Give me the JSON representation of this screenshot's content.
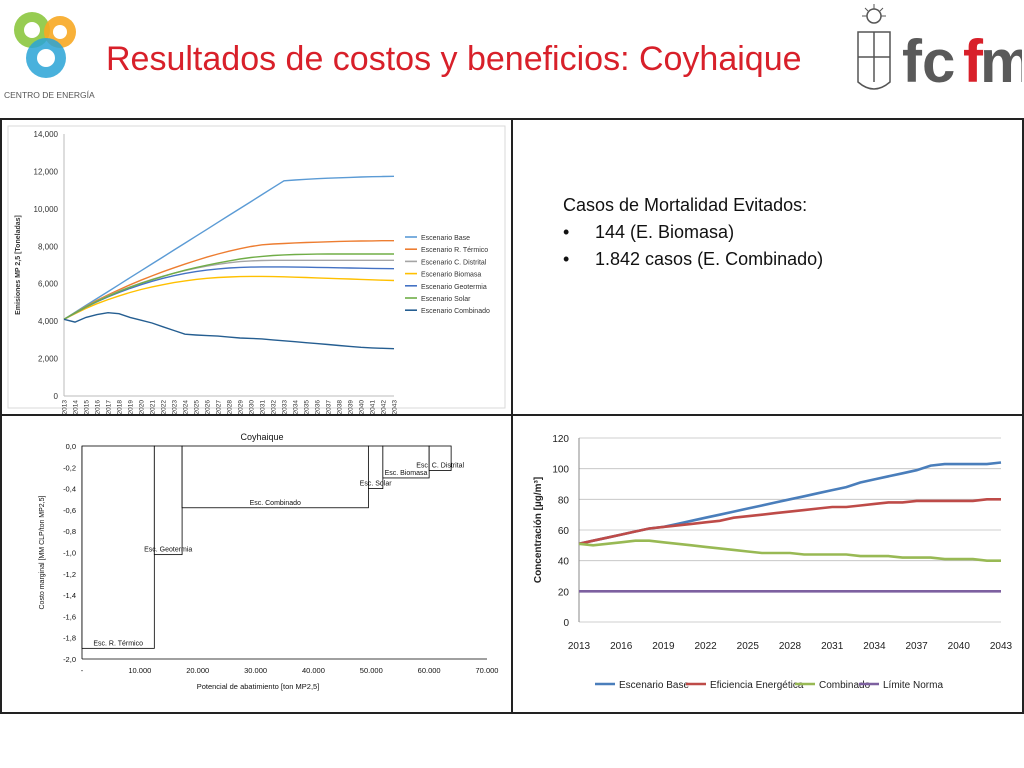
{
  "header": {
    "title": "Resultados de costos y beneficios: Coyhaique",
    "left_logo_text": "CENTRO DE ENERGÍA",
    "right_logo_text": "fcfm"
  },
  "mortality": {
    "heading": "Casos de Mortalidad Evitados:",
    "items": [
      "144 (E. Biomasa)",
      "1.842 casos (E. Combinado)"
    ]
  },
  "chart_data": [
    {
      "type": "line",
      "title": "",
      "xlabel": "",
      "ylabel": "Emisiones MP 2,5 [Toneladas]",
      "ylim": [
        0,
        14000
      ],
      "yticks": [
        "0",
        "2,000",
        "4,000",
        "6,000",
        "8,000",
        "10,000",
        "12,000",
        "14,000"
      ],
      "x": [
        2013,
        2014,
        2015,
        2016,
        2017,
        2018,
        2019,
        2020,
        2021,
        2022,
        2023,
        2024,
        2025,
        2026,
        2027,
        2028,
        2029,
        2030,
        2031,
        2032,
        2033,
        2034,
        2035,
        2036,
        2037,
        2038,
        2039,
        2040,
        2041,
        2042,
        2043
      ],
      "legend_position": "right",
      "grid": false,
      "series": [
        {
          "name": "Escenario Base",
          "color": "#5b9bd5",
          "values": [
            4100,
            4470,
            4840,
            5210,
            5580,
            5950,
            6320,
            6690,
            7060,
            7430,
            7800,
            8170,
            8540,
            8910,
            9280,
            9650,
            10020,
            10390,
            10760,
            11130,
            11500,
            11540,
            11580,
            11610,
            11640,
            11660,
            11680,
            11700,
            11720,
            11730,
            11740
          ]
        },
        {
          "name": "Escenario R. Térmico",
          "color": "#ed7d31",
          "values": [
            4100,
            4450,
            4790,
            5110,
            5400,
            5680,
            5940,
            6190,
            6420,
            6640,
            6850,
            7050,
            7240,
            7420,
            7590,
            7740,
            7870,
            7990,
            8080,
            8120,
            8150,
            8180,
            8200,
            8220,
            8240,
            8260,
            8270,
            8280,
            8290,
            8300,
            8300
          ]
        },
        {
          "name": "Escenario C. Distrital",
          "color": "#a5a5a5",
          "values": [
            4100,
            4440,
            4770,
            5070,
            5350,
            5600,
            5830,
            6040,
            6230,
            6400,
            6560,
            6700,
            6830,
            6940,
            7040,
            7120,
            7180,
            7220,
            7240,
            7250,
            7250,
            7250,
            7250,
            7250,
            7250,
            7250,
            7250,
            7250,
            7250,
            7250,
            7250
          ]
        },
        {
          "name": "Escenario Biomasa",
          "color": "#ffc000",
          "values": [
            4100,
            4400,
            4680,
            4930,
            5150,
            5350,
            5530,
            5690,
            5830,
            5950,
            6060,
            6150,
            6230,
            6290,
            6330,
            6360,
            6380,
            6390,
            6390,
            6380,
            6370,
            6350,
            6330,
            6310,
            6290,
            6270,
            6250,
            6230,
            6210,
            6190,
            6170
          ]
        },
        {
          "name": "Escenario Geotermia",
          "color": "#4472c4",
          "values": [
            4100,
            4430,
            4750,
            5040,
            5300,
            5530,
            5750,
            5950,
            6130,
            6290,
            6430,
            6550,
            6650,
            6730,
            6790,
            6840,
            6870,
            6890,
            6900,
            6900,
            6900,
            6890,
            6880,
            6870,
            6860,
            6850,
            6840,
            6830,
            6820,
            6810,
            6800
          ]
        },
        {
          "name": "Escenario Solar",
          "color": "#70ad47",
          "values": [
            4100,
            4440,
            4760,
            5060,
            5330,
            5580,
            5810,
            6020,
            6210,
            6390,
            6560,
            6720,
            6860,
            6990,
            7110,
            7220,
            7320,
            7400,
            7460,
            7510,
            7540,
            7560,
            7570,
            7580,
            7590,
            7590,
            7590,
            7590,
            7590,
            7590,
            7590
          ]
        },
        {
          "name": "Escenario Combinado",
          "color": "#255e91",
          "values": [
            4100,
            3950,
            4200,
            4350,
            4450,
            4400,
            4200,
            4050,
            3900,
            3700,
            3500,
            3300,
            3260,
            3230,
            3200,
            3150,
            3100,
            3080,
            3050,
            3000,
            2950,
            2900,
            2850,
            2800,
            2750,
            2700,
            2650,
            2600,
            2570,
            2550,
            2530
          ]
        }
      ]
    },
    {
      "type": "area",
      "title": "Coyhaique",
      "xlabel": "Potencial de abatimiento [ton MP2,5]",
      "ylabel": "Costo marginal [MM CLP/ton MP2,5]",
      "xlim": [
        0,
        70000
      ],
      "ylim": [
        -2.0,
        0.0
      ],
      "xticks": [
        "-",
        "10.000",
        "20.000",
        "30.000",
        "40.000",
        "50.000",
        "60.000",
        "70.000"
      ],
      "yticks": [
        "0,0",
        "-0,2",
        "-0,4",
        "-0,6",
        "-0,8",
        "-1,0",
        "-1,2",
        "-1,4",
        "-1,6",
        "-1,8",
        "-2,0"
      ],
      "blocks": [
        {
          "label": "Esc. R. Térmico",
          "x_start": 0,
          "x_end": 12500,
          "value": -1.9
        },
        {
          "label": "Esc. Geotermia",
          "x_start": 12500,
          "x_end": 17300,
          "value": -1.02
        },
        {
          "label": "Esc. Combinado",
          "x_start": 17300,
          "x_end": 49500,
          "value": -0.58
        },
        {
          "label": "Esc. Solar",
          "x_start": 49500,
          "x_end": 52000,
          "value": -0.4
        },
        {
          "label": "Esc. Biomasa",
          "x_start": 52000,
          "x_end": 60000,
          "value": -0.3
        },
        {
          "label": "Esc. C. Distrital",
          "x_start": 60000,
          "x_end": 63800,
          "value": -0.23
        }
      ]
    },
    {
      "type": "line",
      "title": "",
      "xlabel": "",
      "ylabel": "Concentración [µg/m³]",
      "ylim": [
        0,
        120
      ],
      "yticks": [
        "0",
        "20",
        "40",
        "60",
        "80",
        "100",
        "120"
      ],
      "x": [
        2013,
        2014,
        2015,
        2016,
        2017,
        2018,
        2019,
        2020,
        2021,
        2022,
        2023,
        2024,
        2025,
        2026,
        2027,
        2028,
        2029,
        2030,
        2031,
        2032,
        2033,
        2034,
        2035,
        2036,
        2037,
        2038,
        2039,
        2040,
        2041,
        2042,
        2043
      ],
      "xticks": [
        "2013",
        "2016",
        "2019",
        "2022",
        "2025",
        "2028",
        "2031",
        "2034",
        "2037",
        "2040",
        "2043"
      ],
      "legend_position": "bottom",
      "grid": true,
      "series": [
        {
          "name": "Escenario Base",
          "color": "#4a7ebb",
          "values": [
            51,
            53,
            55,
            57,
            59,
            61,
            62,
            64,
            66,
            68,
            70,
            72,
            74,
            76,
            78,
            80,
            82,
            84,
            86,
            88,
            91,
            93,
            95,
            97,
            99,
            102,
            103,
            103,
            103,
            103,
            104
          ]
        },
        {
          "name": "Eficiencia Energética",
          "color": "#be4b48",
          "values": [
            51,
            53,
            55,
            57,
            59,
            61,
            62,
            63,
            64,
            65,
            66,
            68,
            69,
            70,
            71,
            72,
            73,
            74,
            75,
            75,
            76,
            77,
            78,
            78,
            79,
            79,
            79,
            79,
            79,
            80,
            80
          ]
        },
        {
          "name": "Combinado",
          "color": "#98b954",
          "values": [
            51,
            50,
            51,
            52,
            53,
            53,
            52,
            51,
            50,
            49,
            48,
            47,
            46,
            45,
            45,
            45,
            44,
            44,
            44,
            44,
            43,
            43,
            43,
            42,
            42,
            42,
            41,
            41,
            41,
            40,
            40
          ]
        },
        {
          "name": "Límite Norma",
          "color": "#7d60a0",
          "values": [
            20,
            20,
            20,
            20,
            20,
            20,
            20,
            20,
            20,
            20,
            20,
            20,
            20,
            20,
            20,
            20,
            20,
            20,
            20,
            20,
            20,
            20,
            20,
            20,
            20,
            20,
            20,
            20,
            20,
            20,
            20
          ]
        }
      ]
    }
  ]
}
